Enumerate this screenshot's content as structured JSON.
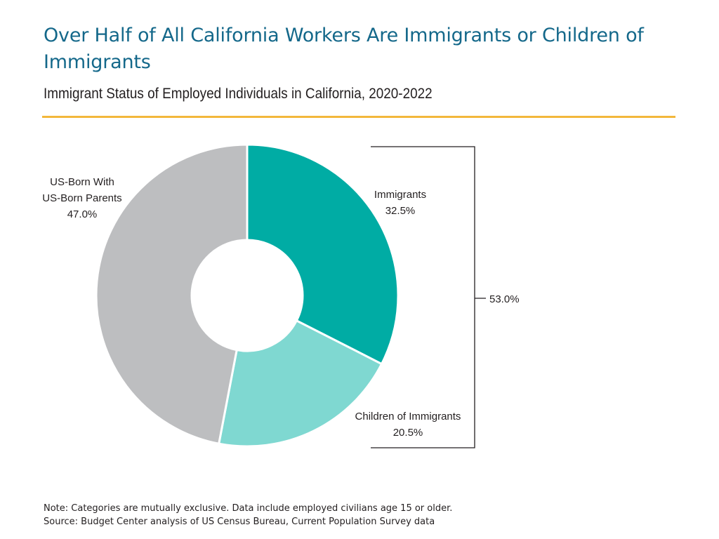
{
  "title": "Over Half of All California Workers Are Immigrants or Children of Immigrants",
  "subtitle": "Immigrant Status of Employed Individuals in California, 2020-2022",
  "colors": {
    "title": "#14688a",
    "rule": "#f3b73b",
    "immigrants": "#00aca4",
    "children": "#7fd8d1",
    "us_born": "#bdbec0",
    "bracket": "#231f20"
  },
  "chart_data": {
    "type": "pie",
    "variant": "donut",
    "slices": [
      {
        "label_lines": [
          "Immigrants"
        ],
        "value": 32.5,
        "value_label": "32.5%",
        "color": "#00aca4"
      },
      {
        "label_lines": [
          "Children of Immigrants"
        ],
        "value": 20.5,
        "value_label": "20.5%",
        "color": "#7fd8d1"
      },
      {
        "label_lines": [
          "US-Born With",
          "US-Born Parents"
        ],
        "value": 47.0,
        "value_label": "47.0%",
        "color": "#bdbec0"
      }
    ],
    "bracket": {
      "covers": [
        "Immigrants",
        "Children of Immigrants"
      ],
      "value": 53.0,
      "label": "53.0%"
    }
  },
  "notes": {
    "note": "Note: Categories are mutually exclusive. Data include employed civilians age 15 or older.",
    "source": "Source: Budget Center analysis of US Census Bureau, Current Population Survey data"
  }
}
